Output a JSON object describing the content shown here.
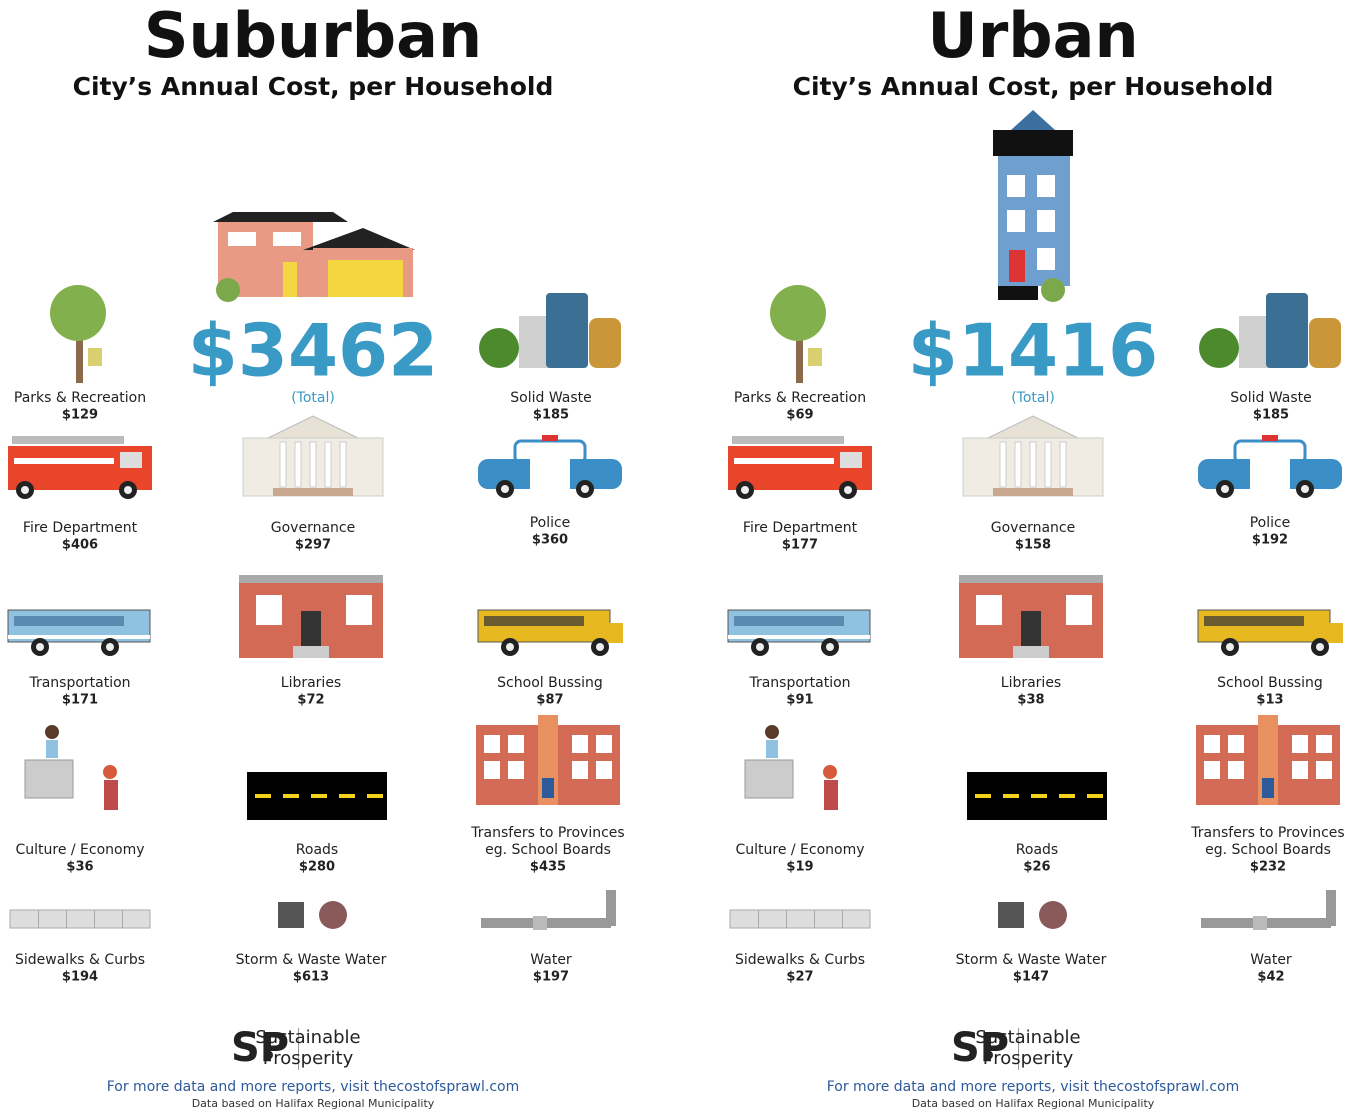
{
  "panels": [
    {
      "title": "Suburban",
      "subtitle": "City’s Annual Cost, per Household",
      "total": "$3462",
      "total_label": "(Total)",
      "items": [
        {
          "label": [
            "Parks & Recreation"
          ],
          "value": "$129"
        },
        {
          "label": [
            "Solid Waste"
          ],
          "value": "$185"
        },
        {
          "label": [
            "Fire Department"
          ],
          "value": "$406"
        },
        {
          "label": [
            "Governance"
          ],
          "value": "$297"
        },
        {
          "label": [
            "Police"
          ],
          "value": "$360"
        },
        {
          "label": [
            "Transportation"
          ],
          "value": "$171"
        },
        {
          "label": [
            "Libraries"
          ],
          "value": "$72"
        },
        {
          "label": [
            "School Bussing"
          ],
          "value": "$87"
        },
        {
          "label": [
            "Culture / Economy"
          ],
          "value": "$36"
        },
        {
          "label": [
            "Roads"
          ],
          "value": "$280"
        },
        {
          "label": [
            "Transfers to Provinces",
            "eg. School Boards"
          ],
          "value": "$435"
        },
        {
          "label": [
            "Sidewalks & Curbs"
          ],
          "value": "$194"
        },
        {
          "label": [
            "Storm & Waste Water"
          ],
          "value": "$613"
        },
        {
          "label": [
            "Water"
          ],
          "value": "$197"
        }
      ],
      "logo": {
        "mark": "SP",
        "name": [
          "Sustainable",
          "Prosperity"
        ]
      },
      "footer": "For more data and more reports, visit thecostofsprawl.com",
      "footnote": "Data based on Halifax Regional Municipality"
    },
    {
      "title": "Urban",
      "subtitle": "City’s Annual Cost, per Household",
      "total": "$1416",
      "total_label": "(Total)",
      "items": [
        {
          "label": [
            "Parks & Recreation"
          ],
          "value": "$69"
        },
        {
          "label": [
            "Solid Waste"
          ],
          "value": "$185"
        },
        {
          "label": [
            "Fire Department"
          ],
          "value": "$177"
        },
        {
          "label": [
            "Governance"
          ],
          "value": "$158"
        },
        {
          "label": [
            "Police"
          ],
          "value": "$192"
        },
        {
          "label": [
            "Transportation"
          ],
          "value": "$91"
        },
        {
          "label": [
            "Libraries"
          ],
          "value": "$38"
        },
        {
          "label": [
            "School Bussing"
          ],
          "value": "$13"
        },
        {
          "label": [
            "Culture / Economy"
          ],
          "value": "$19"
        },
        {
          "label": [
            "Roads"
          ],
          "value": "$26"
        },
        {
          "label": [
            "Transfers to Provinces",
            "eg. School Boards"
          ],
          "value": "$232"
        },
        {
          "label": [
            "Sidewalks & Curbs"
          ],
          "value": "$27"
        },
        {
          "label": [
            "Storm & Waste Water"
          ],
          "value": "$147"
        },
        {
          "label": [
            "Water"
          ],
          "value": "$42"
        }
      ],
      "logo": {
        "mark": "SP",
        "name": [
          "Sustainable",
          "Prosperity"
        ]
      },
      "footer": "For more data and more reports, visit thecostofsprawl.com",
      "footnote": "Data based on Halifax Regional Municipality"
    }
  ]
}
